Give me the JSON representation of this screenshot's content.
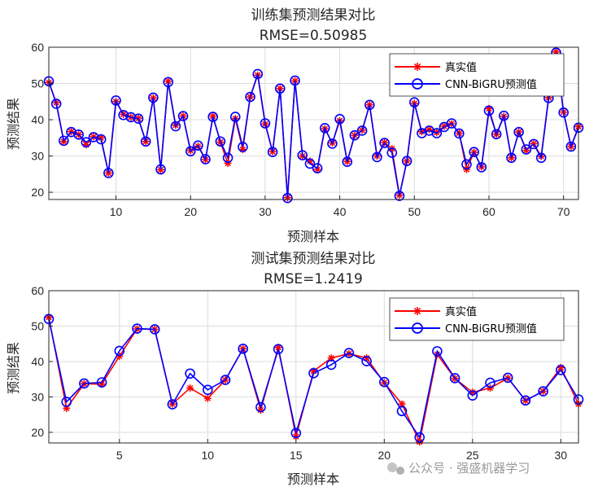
{
  "watermark": {
    "text": "公众号 · 强盛机器学习"
  },
  "colors": {
    "true": "#ff0000",
    "pred": "#0000ff",
    "grid": "#dcdcdc",
    "axis": "#262626"
  },
  "chart_data": [
    {
      "type": "line",
      "title": "训练集预测结果对比",
      "subtitle": "RMSE=0.50985",
      "xlabel": "预测样本",
      "ylabel": "预测结果",
      "xlim": [
        1,
        72
      ],
      "ylim": [
        18,
        60
      ],
      "xticks": [
        10,
        20,
        30,
        40,
        50,
        60,
        70
      ],
      "yticks": [
        20,
        30,
        40,
        50,
        60
      ],
      "grid": true,
      "legend_position": "top-right",
      "series": [
        {
          "name": "真实值",
          "marker": "asterisk",
          "color": "#ff0000",
          "values": [
            50.3,
            44.7,
            34.0,
            36.7,
            35.9,
            33.1,
            35.3,
            35.0,
            25.3,
            45.0,
            41.5,
            40.7,
            40.4,
            34.0,
            46.0,
            26.2,
            50.6,
            38.5,
            41.0,
            31.5,
            32.7,
            29.0,
            41.0,
            33.8,
            28.0,
            40.3,
            31.8,
            46.3,
            52.3,
            38.8,
            31.2,
            48.6,
            18.5,
            50.7,
            30.0,
            28.6,
            26.3,
            37.5,
            33.6,
            39.7,
            28.5,
            35.7,
            37.1,
            44.1,
            30.0,
            33.7,
            32.0,
            19.2,
            28.6,
            44.5,
            36.7,
            37.3,
            36.5,
            38.2,
            38.9,
            36.3,
            26.3,
            31.0,
            27.0,
            43.1,
            36.0,
            40.9,
            29.5,
            36.6,
            31.5,
            33.4,
            29.9,
            46.1,
            58.7,
            42.1,
            32.6,
            38.1
          ]
        },
        {
          "name": "CNN-BiGRU预测值",
          "marker": "circle",
          "color": "#0000ff",
          "values": [
            50.6,
            44.4,
            34.2,
            36.6,
            35.9,
            33.8,
            35.2,
            34.6,
            25.3,
            45.3,
            41.3,
            40.7,
            40.3,
            34.0,
            46.1,
            26.3,
            50.4,
            38.2,
            41.0,
            31.3,
            32.9,
            29.1,
            40.8,
            34.0,
            29.5,
            40.8,
            32.5,
            46.3,
            52.6,
            39.0,
            31.1,
            48.6,
            18.4,
            50.8,
            30.2,
            27.9,
            26.6,
            37.7,
            33.4,
            40.2,
            28.4,
            35.7,
            37.0,
            44.1,
            29.7,
            33.6,
            30.9,
            19.0,
            28.6,
            44.8,
            36.3,
            37.0,
            36.3,
            38.0,
            39.0,
            36.2,
            27.7,
            31.1,
            26.9,
            42.5,
            36.0,
            41.1,
            29.5,
            36.6,
            31.8,
            33.3,
            29.5,
            46.0,
            58.5,
            42.0,
            32.6,
            37.8
          ]
        }
      ]
    },
    {
      "type": "line",
      "title": "测试集预测结果对比",
      "subtitle": "RMSE=1.2419",
      "xlabel": "预测样本",
      "ylabel": "预测结果",
      "xlim": [
        1,
        31
      ],
      "ylim": [
        17,
        60
      ],
      "xticks": [
        5,
        10,
        15,
        20,
        25,
        30
      ],
      "yticks": [
        20,
        30,
        40,
        50,
        60
      ],
      "grid": true,
      "legend_position": "top-right",
      "series": [
        {
          "name": "真实值",
          "marker": "asterisk",
          "color": "#ff0000",
          "values": [
            52.5,
            26.8,
            33.7,
            33.6,
            41.5,
            49.2,
            49.1,
            28.0,
            32.5,
            29.6,
            34.8,
            43.6,
            26.3,
            44.0,
            18.8,
            37.3,
            41.0,
            42.2,
            41.0,
            34.0,
            28.0,
            17.3,
            42.0,
            35.2,
            31.3,
            32.5,
            35.3,
            29.0,
            31.6,
            38.3,
            28.0
          ]
        },
        {
          "name": "CNN-BiGRU预测值",
          "marker": "circle",
          "color": "#0000ff",
          "values": [
            52.0,
            28.6,
            33.8,
            34.1,
            43.0,
            49.3,
            49.1,
            27.9,
            36.6,
            32.0,
            34.8,
            43.6,
            27.1,
            43.5,
            19.8,
            36.7,
            39.1,
            42.4,
            40.1,
            34.2,
            26.0,
            18.6,
            42.9,
            35.3,
            30.4,
            34.0,
            35.4,
            29.0,
            31.6,
            37.6,
            29.3
          ]
        }
      ]
    }
  ]
}
